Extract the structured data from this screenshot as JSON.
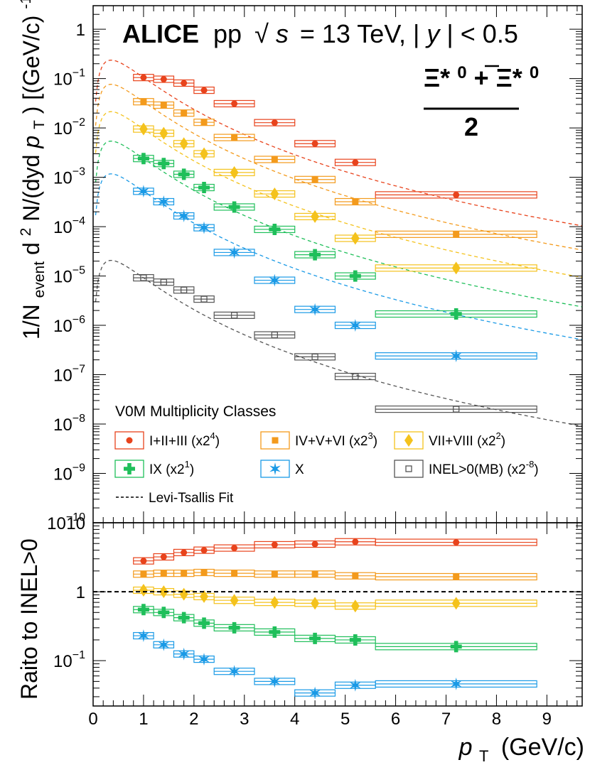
{
  "chart_data": {
    "type": "scatter",
    "title": {
      "experiment": "ALICE",
      "collision": "pp",
      "sqrt": "√",
      "s": "s",
      "energy": "= 13 TeV, |",
      "y": "y",
      "rapidity": "| < 0.5"
    },
    "particle": {
      "left": "Ξ*",
      "left_sup": "0",
      "plus": "+",
      "right": "Ξ*",
      "right_sup": "0",
      "denominator": "2"
    },
    "x_axis": {
      "label_p": "p",
      "label_sub": "T",
      "label_units": "(GeV/c)",
      "range": [
        0,
        9.7
      ],
      "tick_labels": [
        "0",
        "1",
        "2",
        "3",
        "4",
        "5",
        "6",
        "7",
        "8",
        "9"
      ]
    },
    "top_panel": {
      "scale": "log",
      "range": [
        1e-10,
        3
      ],
      "ylabel": {
        "prefix": "1/N",
        "sub1": "event",
        "d2": "d",
        "two": "2",
        "middle": "N/(dyd",
        "p": "p",
        "sub2": "T",
        "suffix": ") [(GeV/c)",
        "minus1": "-1",
        "close": "]"
      },
      "tick_labels": [
        {
          "base": "1",
          "exp": ""
        },
        {
          "base": "10",
          "exp": "−1"
        },
        {
          "base": "10",
          "exp": "−2"
        },
        {
          "base": "10",
          "exp": "−3"
        },
        {
          "base": "10",
          "exp": "−4"
        },
        {
          "base": "10",
          "exp": "−5"
        },
        {
          "base": "10",
          "exp": "−6"
        },
        {
          "base": "10",
          "exp": "−7"
        },
        {
          "base": "10",
          "exp": "−8"
        },
        {
          "base": "10",
          "exp": "−9"
        },
        {
          "base": "10",
          "exp": "−10"
        }
      ],
      "legend_title": "V0M Multiplicity Classes",
      "fit_label": "Levi-Tsallis Fit"
    },
    "bottom_panel": {
      "scale": "log",
      "range": [
        0.022,
        10
      ],
      "ylabel": "Raito to INEL>0",
      "reference_line": 1,
      "tick_labels": [
        {
          "base": "10",
          "exp": ""
        },
        {
          "base": "1",
          "exp": ""
        },
        {
          "base": "10",
          "exp": "−1"
        }
      ]
    },
    "bins": [
      {
        "center": 1.0,
        "lo": 0.8,
        "hi": 1.2
      },
      {
        "center": 1.4,
        "lo": 1.2,
        "hi": 1.6
      },
      {
        "center": 1.8,
        "lo": 1.6,
        "hi": 2.0
      },
      {
        "center": 2.2,
        "lo": 2.0,
        "hi": 2.4
      },
      {
        "center": 2.8,
        "lo": 2.4,
        "hi": 3.2
      },
      {
        "center": 3.6,
        "lo": 3.2,
        "hi": 4.0
      },
      {
        "center": 4.4,
        "lo": 4.0,
        "hi": 4.8
      },
      {
        "center": 5.2,
        "lo": 4.8,
        "hi": 5.6
      },
      {
        "center": 7.2,
        "lo": 5.6,
        "hi": 8.8
      }
    ],
    "series": [
      {
        "name": "I+II+III",
        "scale": "(x2",
        "scale_exp": "4",
        "scale_close": ")",
        "color": "#e8431c",
        "marker": "circle",
        "spectrum": [
          0.105,
          0.097,
          0.081,
          0.058,
          0.031,
          0.0128,
          0.0048,
          0.002,
          0.00044
        ],
        "ratio": [
          2.8,
          3.2,
          3.7,
          4.0,
          4.3,
          4.8,
          4.9,
          5.3,
          5.2
        ]
      },
      {
        "name": "IV+V+VI",
        "scale": "(x2",
        "scale_exp": "3",
        "scale_close": ")",
        "color": "#f39a1c",
        "marker": "square",
        "spectrum": [
          0.034,
          0.029,
          0.02,
          0.013,
          0.0064,
          0.0023,
          0.0009,
          0.00032,
          7e-05
        ],
        "ratio": [
          1.8,
          1.85,
          1.85,
          1.9,
          1.85,
          1.8,
          1.8,
          1.7,
          1.65
        ]
      },
      {
        "name": "VII+VIII",
        "scale": "(x2",
        "scale_exp": "2",
        "scale_close": ")",
        "color": "#f4c21c",
        "marker": "diamond",
        "spectrum": [
          0.0095,
          0.0078,
          0.0048,
          0.003,
          0.00125,
          0.00046,
          0.00016,
          5.8e-05,
          1.45e-05
        ],
        "ratio": [
          1.05,
          1.0,
          0.92,
          0.85,
          0.75,
          0.7,
          0.68,
          0.62,
          0.68
        ]
      },
      {
        "name": "IX",
        "scale": "(x2",
        "scale_exp": "1",
        "scale_close": ")",
        "color": "#1fbf5a",
        "marker": "cross",
        "spectrum": [
          0.0024,
          0.0019,
          0.00115,
          0.00062,
          0.00025,
          8.8e-05,
          2.7e-05,
          1e-05,
          1.7e-06
        ],
        "ratio": [
          0.55,
          0.5,
          0.42,
          0.35,
          0.3,
          0.26,
          0.21,
          0.2,
          0.16
        ]
      },
      {
        "name": "X",
        "scale": "",
        "scale_exp": "",
        "scale_close": "",
        "color": "#1a9ae6",
        "marker": "star",
        "spectrum": [
          0.00052,
          0.00032,
          0.000165,
          9.5e-05,
          3e-05,
          8.2e-06,
          2.1e-06,
          1e-06,
          2.4e-07
        ],
        "ratio": [
          0.23,
          0.17,
          0.125,
          0.105,
          0.07,
          0.05,
          0.034,
          0.044,
          0.046
        ]
      },
      {
        "name": "INEL>0(MB)",
        "scale": "(x2",
        "scale_exp": "-8",
        "scale_close": ")",
        "color": "#555555",
        "marker": "open-square",
        "spectrum": [
          9.2e-06,
          7.5e-06,
          5.2e-06,
          3.4e-06,
          1.6e-06,
          6.4e-07,
          2.3e-07,
          9.2e-08,
          2e-08
        ],
        "ratio": null
      }
    ],
    "fit_curves": [
      {
        "color": "#e8431c",
        "amp": 0.105
      },
      {
        "color": "#f39a1c",
        "amp": 0.034
      },
      {
        "color": "#f4c21c",
        "amp": 0.0095
      },
      {
        "color": "#1fbf5a",
        "amp": 0.0024
      },
      {
        "color": "#1a9ae6",
        "amp": 0.00052
      },
      {
        "color": "#555555",
        "amp": 9.2e-06
      }
    ]
  }
}
